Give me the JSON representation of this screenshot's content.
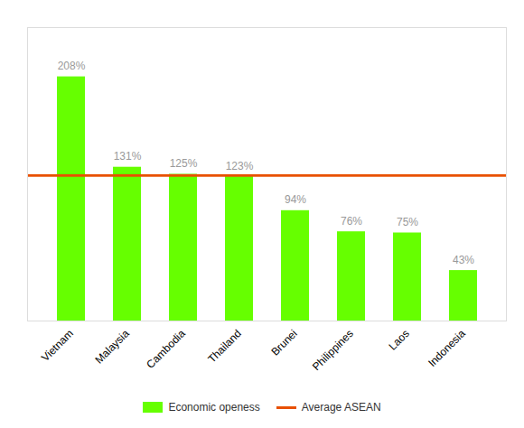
{
  "chart_data": {
    "type": "bar",
    "categories": [
      "Vietnam",
      "Malaysia",
      "Cambodia",
      "Thailand",
      "Brunei",
      "Philippines",
      "Laos",
      "Indonesia"
    ],
    "series": [
      {
        "name": "Economic openess",
        "type": "bar",
        "color": "#66FF00",
        "values": [
          208,
          131,
          125,
          123,
          94,
          76,
          75,
          43
        ],
        "value_labels": [
          "208%",
          "131%",
          "125%",
          "123%",
          "94%",
          "76%",
          "75%",
          "43%"
        ]
      },
      {
        "name": "Average ASEAN",
        "type": "rule",
        "color": "#E85000",
        "value": 124
      }
    ],
    "ylim": [
      0,
      250
    ],
    "data_labels": true,
    "tick_labels": "x",
    "grid": false,
    "legend": "bottom"
  }
}
